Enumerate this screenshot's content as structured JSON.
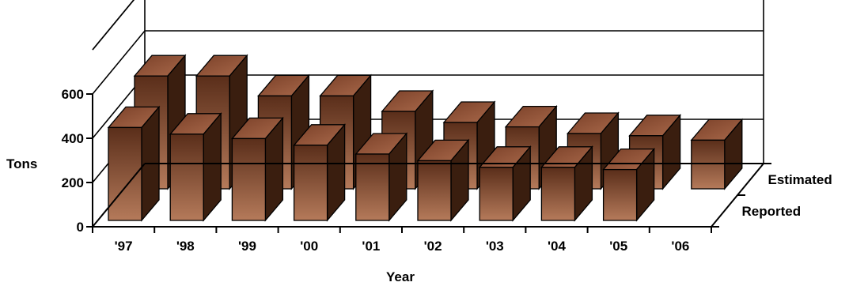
{
  "chart_data": {
    "type": "bar",
    "categories": [
      "'97",
      "'98",
      "'99",
      "'00",
      "'01",
      "'02",
      "'03",
      "'04",
      "'05",
      "'06"
    ],
    "series": [
      {
        "name": "Reported",
        "values": [
          420,
          390,
          370,
          340,
          300,
          270,
          240,
          240,
          230,
          null
        ]
      },
      {
        "name": "Estimated",
        "values": [
          510,
          510,
          420,
          420,
          350,
          300,
          280,
          250,
          240,
          220
        ]
      }
    ],
    "ylabel": "Tons",
    "xlabel": "Year",
    "yticks": [
      0,
      200,
      400,
      600
    ],
    "ylim": [
      0,
      800
    ],
    "grid": true,
    "colors": {
      "front_top": "#5a2e1a",
      "front_bottom": "#b57a5a",
      "side": "#3a1e0f",
      "top": "#8a4c30"
    }
  }
}
